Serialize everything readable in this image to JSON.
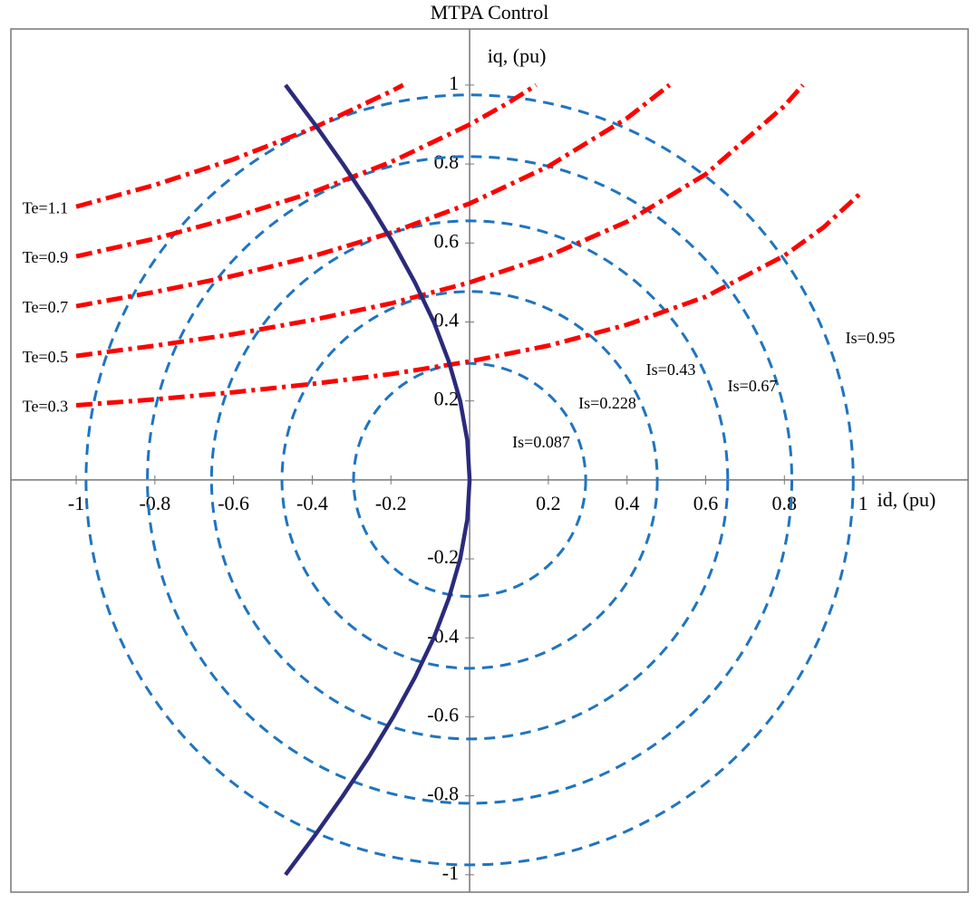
{
  "chart_data": {
    "type": "line",
    "title": "MTPA Control",
    "xlabel": "id, (pu)",
    "ylabel": "iq, (pu)",
    "xlim": [
      -1.166,
      1.267
    ],
    "ylim": [
      -1.044,
      1.142
    ],
    "xticks": [
      -1,
      -0.8,
      -0.6,
      -0.4,
      -0.2,
      0.2,
      0.4,
      0.6,
      0.8,
      1
    ],
    "yticks": [
      -1,
      -0.8,
      -0.6,
      -0.4,
      -0.2,
      0.2,
      0.4,
      0.6,
      0.8,
      1
    ],
    "circle_color": "#1f74c0",
    "circles": [
      {
        "label": "Is=0.087",
        "r": 0.295
      },
      {
        "label": "Is=0.228",
        "r": 0.477
      },
      {
        "label": "Is=0.43",
        "r": 0.656
      },
      {
        "label": "Is=0.67",
        "r": 0.819
      },
      {
        "label": "Is=0.95",
        "r": 0.975
      }
    ],
    "series": [
      {
        "name": "Te=0.3",
        "color": "#ff0000",
        "style": "dashdot",
        "x": [
          -1,
          -0.8,
          -0.6,
          -0.4,
          -0.2,
          0,
          0.2,
          0.4,
          0.6,
          0.8,
          0.9,
          1
        ],
        "y": [
          0.189,
          0.204,
          0.222,
          0.243,
          0.268,
          0.3,
          0.34,
          0.393,
          0.464,
          0.568,
          0.64,
          0.732
        ]
      },
      {
        "name": "Te=0.5",
        "color": "#ff0000",
        "style": "dashdot",
        "x": [
          -1,
          -0.8,
          -0.6,
          -0.4,
          -0.2,
          0,
          0.2,
          0.4,
          0.6,
          0.8,
          0.847
        ],
        "y": [
          0.314,
          0.34,
          0.369,
          0.405,
          0.447,
          0.5,
          0.567,
          0.654,
          0.774,
          0.947,
          1.0
        ]
      },
      {
        "name": "Te=0.7",
        "color": "#ff0000",
        "style": "dashdot",
        "x": [
          -1,
          -0.8,
          -0.6,
          -0.4,
          -0.2,
          0,
          0.2,
          0.4,
          0.508
        ],
        "y": [
          0.44,
          0.476,
          0.517,
          0.566,
          0.626,
          0.7,
          0.794,
          0.916,
          1.0
        ]
      },
      {
        "name": "Te=0.9",
        "color": "#ff0000",
        "style": "dashdot",
        "x": [
          -1,
          -0.8,
          -0.6,
          -0.4,
          -0.2,
          0,
          0.1,
          0.169
        ],
        "y": [
          0.566,
          0.611,
          0.665,
          0.728,
          0.805,
          0.9,
          0.956,
          1.0
        ]
      },
      {
        "name": "Te=1.1",
        "color": "#ff0000",
        "style": "dashdot",
        "x": [
          -1,
          -0.8,
          -0.6,
          -0.4,
          -0.2,
          -0.169
        ],
        "y": [
          0.692,
          0.747,
          0.812,
          0.89,
          0.984,
          1.0
        ]
      },
      {
        "color": "#2b2a7c",
        "style": "solid",
        "x": [
          -0.468,
          -0.393,
          -0.322,
          -0.255,
          -0.194,
          -0.139,
          -0.091,
          -0.053,
          -0.024,
          -0.006,
          0,
          -0.006,
          -0.024,
          -0.053,
          -0.091,
          -0.139,
          -0.194,
          -0.255,
          -0.322,
          -0.393,
          -0.468
        ],
        "y": [
          -1,
          -0.9,
          -0.8,
          -0.7,
          -0.6,
          -0.5,
          -0.4,
          -0.3,
          -0.2,
          -0.1,
          0,
          0.1,
          0.2,
          0.3,
          0.4,
          0.5,
          0.6,
          0.7,
          0.8,
          0.9,
          1
        ]
      }
    ]
  }
}
